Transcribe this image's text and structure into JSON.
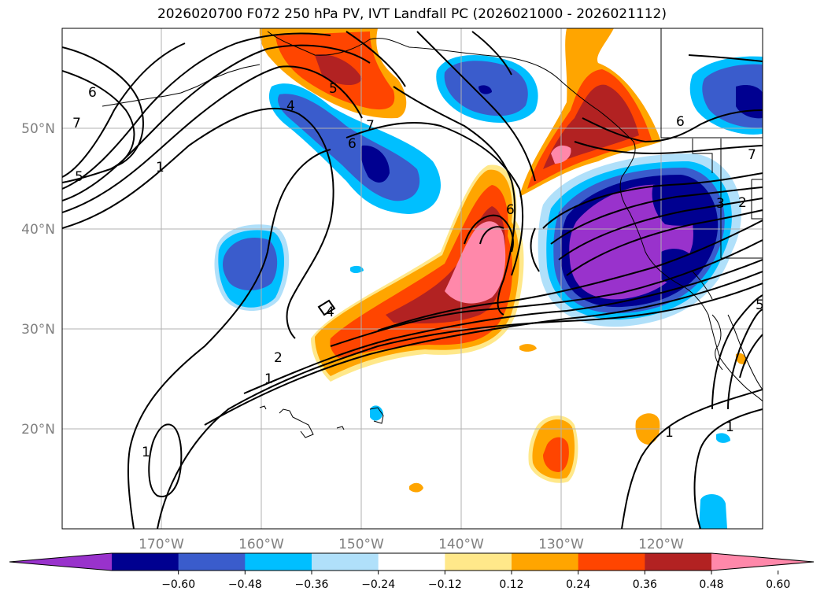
{
  "title": "2026020700 F072 250 hPa PV, IVT Landfall PC (2026021000 - 2026021112)",
  "map": {
    "lon_ticks": [
      "170°W",
      "160°W",
      "150°W",
      "140°W",
      "130°W",
      "120°W"
    ],
    "lat_ticks": [
      "50°N",
      "40°N",
      "30°N",
      "20°N"
    ]
  },
  "colorbar": {
    "labels": [
      "−0.60",
      "−0.48",
      "−0.36",
      "−0.24",
      "−0.12",
      "0.12",
      "0.24",
      "0.36",
      "0.48",
      "0.60"
    ],
    "colors": [
      "#9932cc",
      "#000090",
      "#3a5ccc",
      "#00bfff",
      "#b0e0fa",
      "#ffffff",
      "#ffe88a",
      "#ffa500",
      "#ff4500",
      "#b22222",
      "#ff88aa"
    ]
  },
  "pv_labels": [
    "6",
    "7",
    "5",
    "1",
    "4",
    "5",
    "6",
    "7",
    "1",
    "2",
    "1",
    "6",
    "7",
    "3",
    "2",
    "1",
    "1",
    "4",
    "6",
    "5"
  ]
}
